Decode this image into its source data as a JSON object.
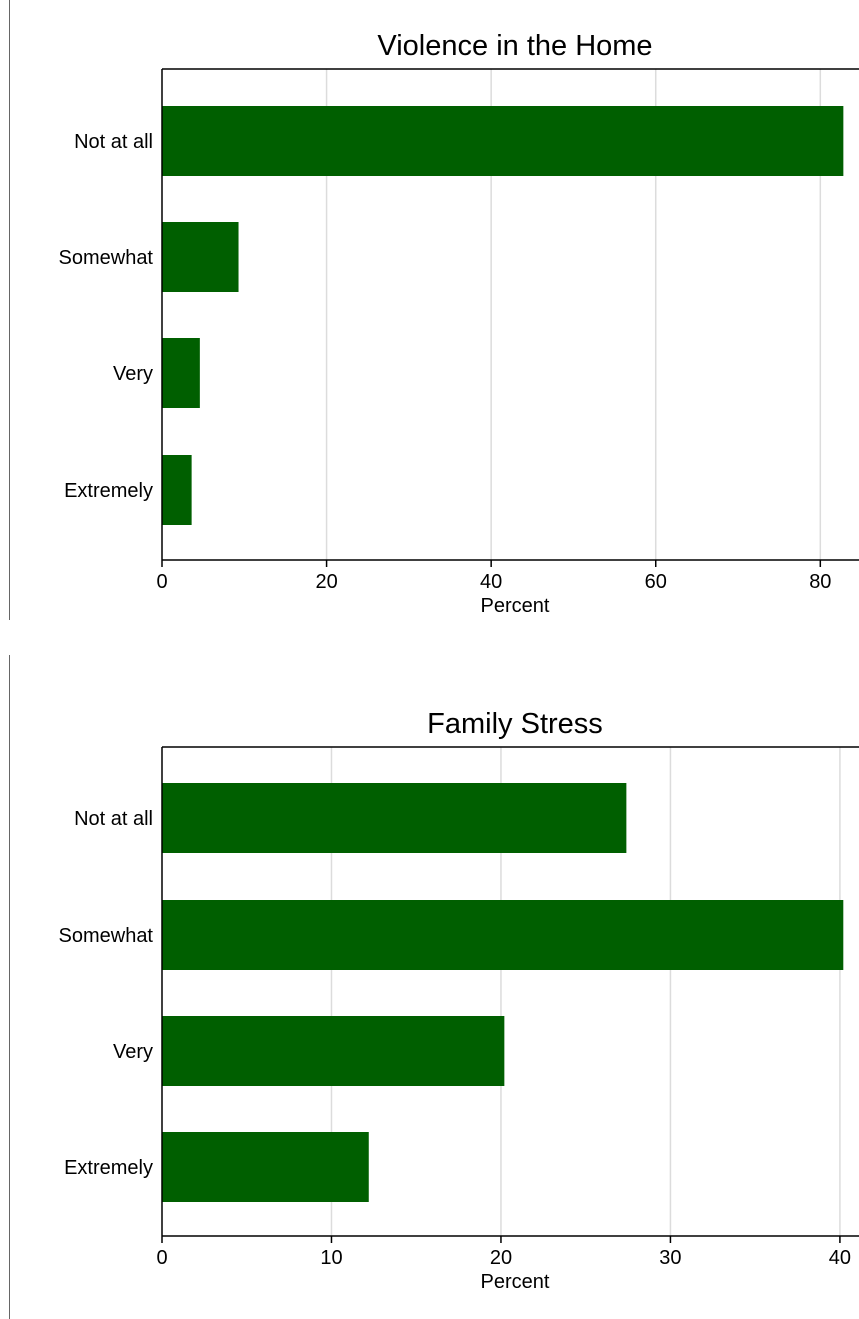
{
  "chart_data": [
    {
      "type": "bar",
      "orientation": "horizontal",
      "title": "Violence in the Home",
      "categories": [
        "Not at all",
        "Somewhat",
        "Very",
        "Extremely"
      ],
      "values": [
        82.8,
        9.3,
        4.6,
        3.6
      ],
      "xlabel": "Percent",
      "ylabel": "",
      "xlim": [
        0,
        83
      ],
      "xticks": [
        0,
        20,
        40,
        60,
        80
      ],
      "grid": true,
      "bar_color": "#005f00"
    },
    {
      "type": "bar",
      "orientation": "horizontal",
      "title": "Family Stress",
      "categories": [
        "Not at all",
        "Somewhat",
        "Very",
        "Extremely"
      ],
      "values": [
        27.4,
        40.2,
        20.2,
        12.2
      ],
      "xlabel": "Percent",
      "ylabel": "",
      "xlim": [
        0,
        40.3
      ],
      "xticks": [
        0,
        10,
        20,
        30,
        40
      ],
      "grid": true,
      "bar_color": "#005f00"
    }
  ]
}
